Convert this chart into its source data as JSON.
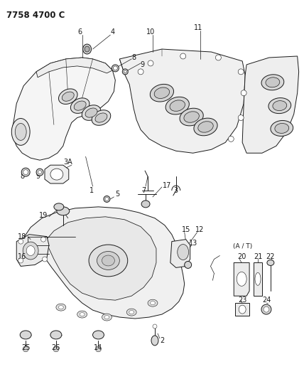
{
  "title": "7758 4700 C",
  "bg_color": "#ffffff",
  "title_fontsize": 8.5,
  "fig_width": 4.28,
  "fig_height": 5.33,
  "dpi": 100,
  "line_color": "#1a1a1a",
  "fill_color": "#ffffff",
  "lw": 0.7
}
